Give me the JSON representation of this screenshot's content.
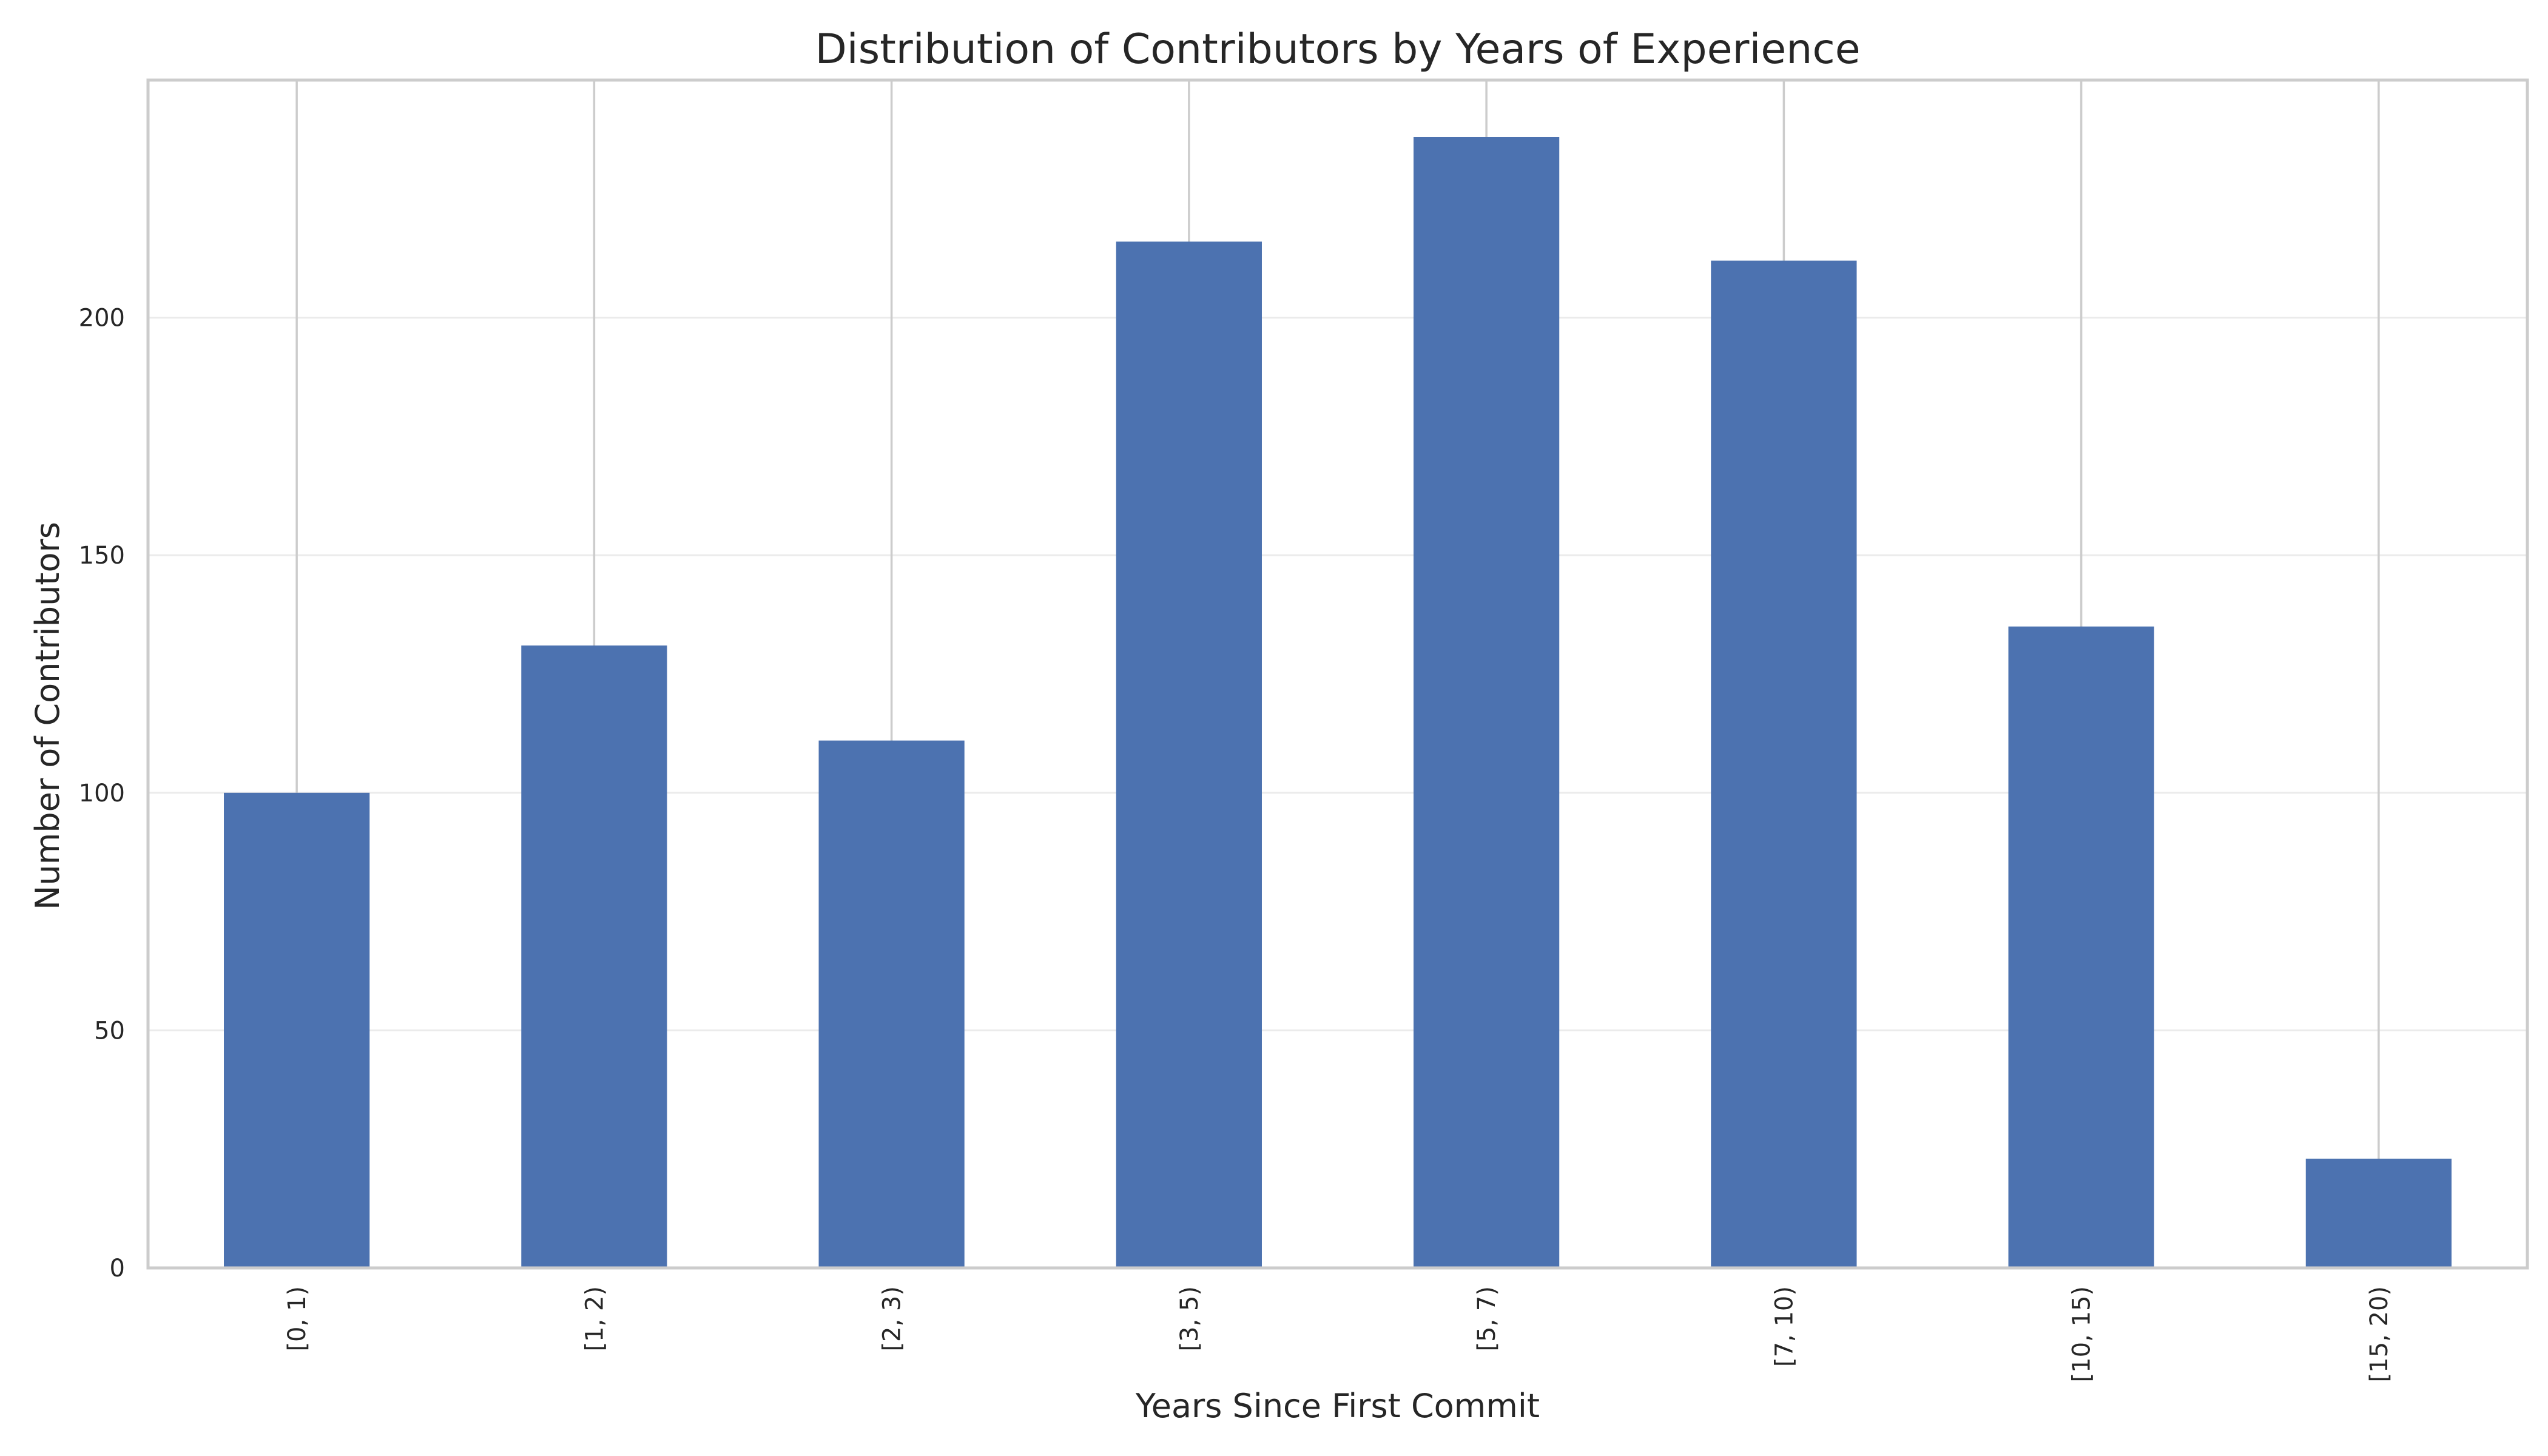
{
  "chart_data": {
    "type": "bar",
    "title": "Distribution of Contributors by Years of Experience",
    "xlabel": "Years Since First Commit",
    "ylabel": "Number of Contributors",
    "categories": [
      "[0, 1)",
      "[1, 2)",
      "[2, 3)",
      "[3, 5)",
      "[5, 7)",
      "[7, 10)",
      "[10, 15)",
      "[15, 20)"
    ],
    "values": [
      100,
      131,
      111,
      216,
      238,
      212,
      135,
      23
    ],
    "ylim": [
      0,
      250
    ],
    "yticks": [
      0,
      50,
      100,
      150,
      200
    ],
    "ytick_labels": [
      "0",
      "50",
      "100",
      "150",
      "200"
    ],
    "x_tick_rotation": "vertical",
    "grid": true,
    "bar_color": "#4c72b0"
  }
}
